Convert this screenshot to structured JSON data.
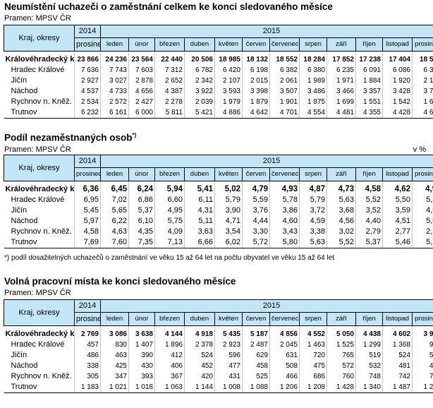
{
  "header": {
    "year_prev": "2014",
    "year_curr": "2015",
    "region_col": "Kraj, okresy",
    "months": [
      "prosinec",
      "leden",
      "únor",
      "březen",
      "duben",
      "květen",
      "červen",
      "červenec",
      "srpen",
      "září",
      "říjen",
      "listopad",
      "prosinec"
    ]
  },
  "section1": {
    "title": "Neumístění uchazeči o zaměstnání celkem ke konci sledovaného měsíce",
    "source": "Pramen: MPSV ČR",
    "rows": [
      {
        "name": "Královéhradecký kr",
        "values": [
          "23 866",
          "24 236",
          "23 564",
          "22 440",
          "20 506",
          "18 985",
          "18 132",
          "18 552",
          "18 284",
          "17 852",
          "17 238",
          "17 404",
          "18 574"
        ]
      },
      {
        "name": "Hradec Králové",
        "values": [
          "7 636",
          "7 743",
          "7 603",
          "7 312",
          "6 782",
          "6 420",
          "6 198",
          "6 382",
          "6 380",
          "6 235",
          "6 091",
          "6 086",
          "6 394"
        ]
      },
      {
        "name": "Jičín",
        "values": [
          "2 927",
          "3 027",
          "2 878",
          "2 652",
          "2 342",
          "2 107",
          "2 015",
          "2 061",
          "1 989",
          "1 971",
          "1 884",
          "1 920",
          "2 156"
        ]
      },
      {
        "name": "Náchod",
        "values": [
          "4 537",
          "4 733",
          "4 656",
          "4 387",
          "3 922",
          "3 593",
          "3 398",
          "3 507",
          "3 486",
          "3 466",
          "3 357",
          "3 428",
          "3 766"
        ]
      },
      {
        "name": "Rychnov n. Kněž.",
        "values": [
          "2 534",
          "2 572",
          "2 427",
          "2 278",
          "2 039",
          "1 979",
          "1 879",
          "1 901",
          "1 875",
          "1 699",
          "1 551",
          "1 542",
          "1 607"
        ]
      },
      {
        "name": "Trutnov",
        "values": [
          "6 232",
          "6 161",
          "6 000",
          "5 811",
          "5 421",
          "4 886",
          "4 642",
          "4 701",
          "4 554",
          "4 481",
          "4 355",
          "4 428",
          "4 651"
        ]
      }
    ]
  },
  "section2": {
    "title": "Podíl nezaměstnaných osob",
    "title_sup": "*)",
    "source": "Pramen: MPSV ČR",
    "unit": "v %",
    "note": "*) podíl dosažitelných uchazečů o zaměstnání ve věku 15 až 64 let na počtu obyvatel ve věku 15 až 64 let",
    "rows": [
      {
        "name": "Královéhradecký kr",
        "values": [
          "6,36",
          "6,45",
          "6,24",
          "5,94",
          "5,41",
          "5,02",
          "4,79",
          "4,93",
          "4,87",
          "4,73",
          "4,58",
          "4,62",
          "4,96"
        ]
      },
      {
        "name": "Hradec Králové",
        "values": [
          "6,95",
          "7,02",
          "6,86",
          "6,60",
          "6,11",
          "5,79",
          "5,59",
          "5,78",
          "5,79",
          "5,63",
          "5,52",
          "5,50",
          "5,80"
        ]
      },
      {
        "name": "Jičín",
        "values": [
          "5,45",
          "5,65",
          "5,37",
          "4,95",
          "4,31",
          "3,90",
          "3,76",
          "3,86",
          "3,72",
          "3,68",
          "3,52",
          "3,59",
          "4,05"
        ]
      },
      {
        "name": "Náchod",
        "values": [
          "5,97",
          "6,22",
          "6,10",
          "5,75",
          "5,11",
          "4,71",
          "4,44",
          "4,60",
          "4,59",
          "4,56",
          "4,40",
          "4,51",
          "5,00"
        ]
      },
      {
        "name": "Rychnov n. Kněž.",
        "values": [
          "4,58",
          "4,63",
          "4,35",
          "4,09",
          "3,63",
          "3,54",
          "3,30",
          "3,43",
          "3,38",
          "3,02",
          "2,79",
          "2,77",
          "2,88"
        ]
      },
      {
        "name": "Trutnov",
        "values": [
          "7,69",
          "7,60",
          "7,35",
          "7,13",
          "6,66",
          "6,02",
          "5,72",
          "5,80",
          "5,63",
          "5,52",
          "5,37",
          "5,46",
          "5,76"
        ]
      }
    ]
  },
  "section3": {
    "title": "Volná pracovní místa ke konci sledovaného měsíce",
    "source": "Pramen: MPSV ČR",
    "rows": [
      {
        "name": "Královéhradecký kr",
        "values": [
          "2 769",
          "3 086",
          "3 638",
          "4 144",
          "4 918",
          "5 435",
          "5 187",
          "4 856",
          "4 552",
          "5 050",
          "4 438",
          "4 602",
          "3 932"
        ]
      },
      {
        "name": "Hradec Králové",
        "values": [
          "457",
          "830",
          "1 407",
          "1 896",
          "2 378",
          "2 923",
          "2 487",
          "2 045",
          "1 463",
          "1 525",
          "1 299",
          "1 368",
          "977"
        ]
      },
      {
        "name": "Jičín",
        "values": [
          "486",
          "463",
          "390",
          "412",
          "524",
          "596",
          "629",
          "631",
          "720",
          "765",
          "519",
          "524",
          "531"
        ]
      },
      {
        "name": "Náchod",
        "values": [
          "338",
          "425",
          "430",
          "406",
          "452",
          "477",
          "458",
          "508",
          "475",
          "572",
          "532",
          "481",
          "455"
        ]
      },
      {
        "name": "Rychnov n. Kněž.",
        "values": [
          "305",
          "347",
          "393",
          "367",
          "420",
          "431",
          "525",
          "466",
          "686",
          "760",
          "748",
          "742",
          "761"
        ]
      },
      {
        "name": "Trutnov",
        "values": [
          "1 183",
          "1 021",
          "1 018",
          "1 063",
          "1 144",
          "1 008",
          "1 088",
          "1 206",
          "1 208",
          "1 428",
          "1 340",
          "1 487",
          "1 208"
        ]
      }
    ]
  }
}
